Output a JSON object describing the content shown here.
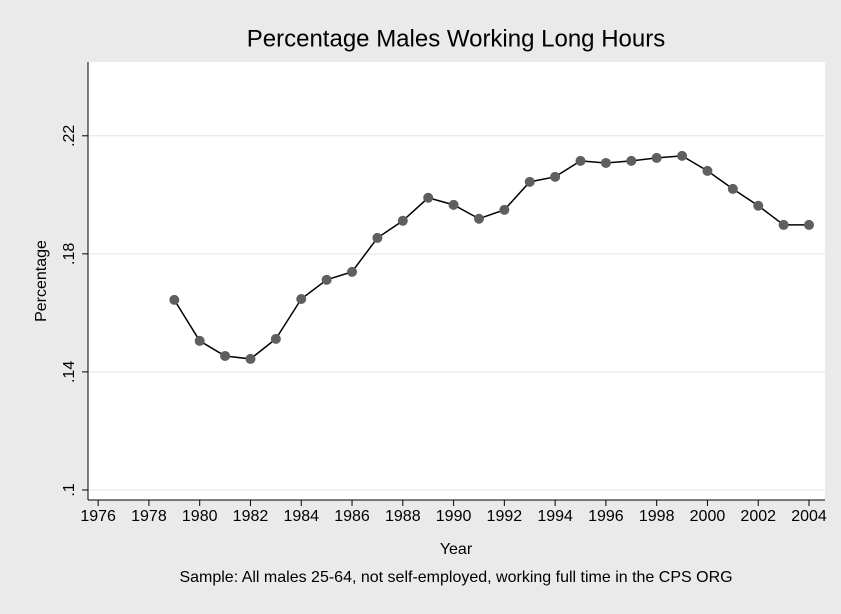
{
  "chart_data": {
    "type": "line",
    "title": "Percentage Males Working Long Hours",
    "xlabel": "Year",
    "ylabel": "Percentage",
    "note": "Sample: All males 25-64, not self-employed, working full time in the CPS ORG",
    "x": [
      1979,
      1980,
      1981,
      1982,
      1983,
      1984,
      1985,
      1986,
      1987,
      1988,
      1989,
      1990,
      1991,
      1992,
      1993,
      1994,
      1995,
      1996,
      1997,
      1998,
      1999,
      2000,
      2001,
      2002,
      2003,
      2004
    ],
    "series": [
      {
        "name": "Percentage",
        "color": "#000000",
        "marker_color": "#5f5f5f",
        "values": [
          0.1644,
          0.1505,
          0.1454,
          0.1444,
          0.1512,
          0.1647,
          0.1712,
          0.1739,
          0.1854,
          0.1912,
          0.199,
          0.1966,
          0.1919,
          0.1949,
          0.2044,
          0.2061,
          0.2115,
          0.2108,
          0.2115,
          0.2125,
          0.2132,
          0.2081,
          0.202,
          0.1963,
          0.1898,
          0.1898
        ]
      }
    ],
    "xlim": [
      1975.6,
      2004.63
    ],
    "xticks": [
      1976,
      1978,
      1980,
      1982,
      1984,
      1986,
      1988,
      1990,
      1992,
      1994,
      1996,
      1998,
      2000,
      2002,
      2004
    ],
    "ylim": [
      0.0966,
      0.245
    ],
    "yticks": [
      {
        "value": 0.1,
        "label": ".1"
      },
      {
        "value": 0.14,
        "label": ".14"
      },
      {
        "value": 0.18,
        "label": ".18"
      },
      {
        "value": 0.22,
        "label": ".22"
      }
    ],
    "grid": true
  }
}
